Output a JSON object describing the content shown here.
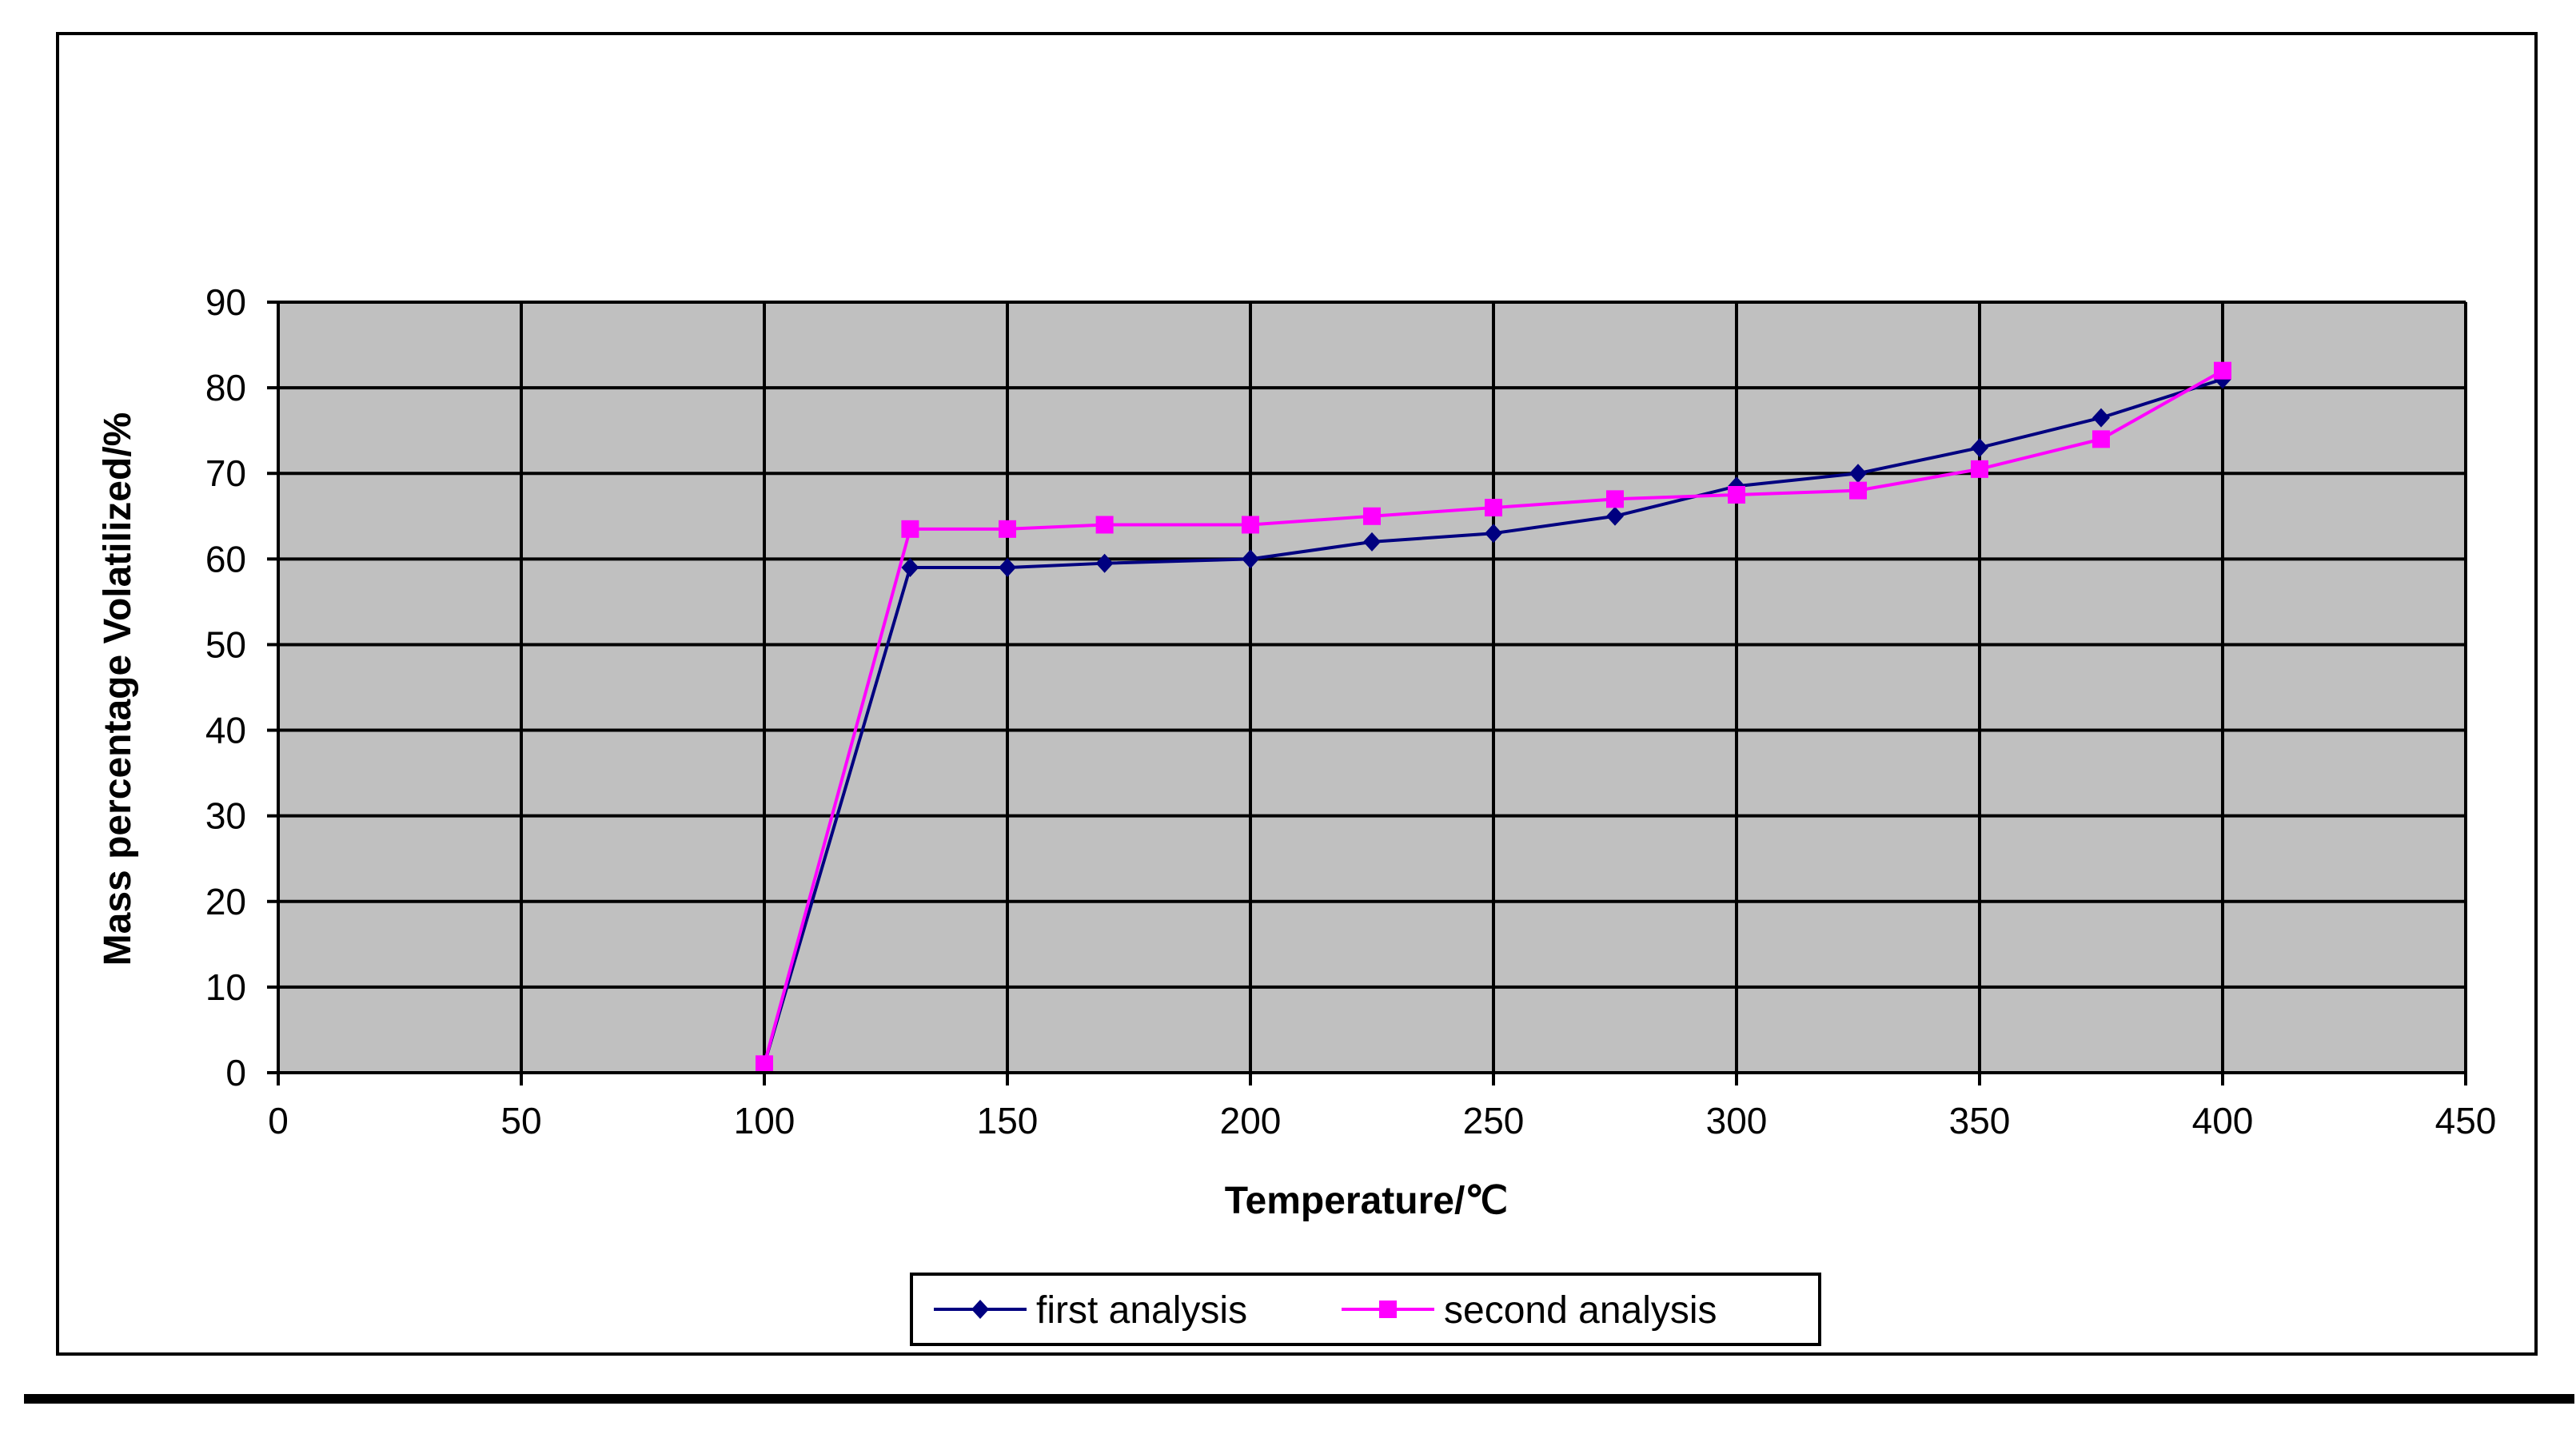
{
  "chart_data": {
    "type": "line",
    "xlabel": "Temperature/℃",
    "ylabel": "Mass percentage Volatilized/%",
    "xlim": [
      0,
      450
    ],
    "ylim": [
      0,
      90
    ],
    "xticks": [
      0,
      50,
      100,
      150,
      200,
      250,
      300,
      350,
      400,
      450
    ],
    "yticks": [
      0,
      10,
      20,
      30,
      40,
      50,
      60,
      70,
      80,
      90
    ],
    "grid": true,
    "plot_background": "#c0c0c0",
    "legend_position": "bottom-center",
    "series": [
      {
        "name": "first analysis",
        "color": "#000080",
        "marker": "diamond",
        "x": [
          100,
          130,
          150,
          170,
          200,
          225,
          250,
          275,
          300,
          325,
          350,
          375,
          400
        ],
        "y": [
          1,
          59,
          59,
          59.5,
          60,
          62,
          63,
          65,
          68.5,
          70,
          73,
          76.5,
          81
        ]
      },
      {
        "name": "second analysis",
        "color": "#ff00ff",
        "marker": "square",
        "x": [
          100,
          130,
          150,
          170,
          200,
          225,
          250,
          275,
          300,
          325,
          350,
          375,
          400
        ],
        "y": [
          1,
          63.5,
          63.5,
          64,
          64,
          65,
          66,
          67,
          67.5,
          68,
          70.5,
          74,
          82
        ]
      }
    ]
  }
}
